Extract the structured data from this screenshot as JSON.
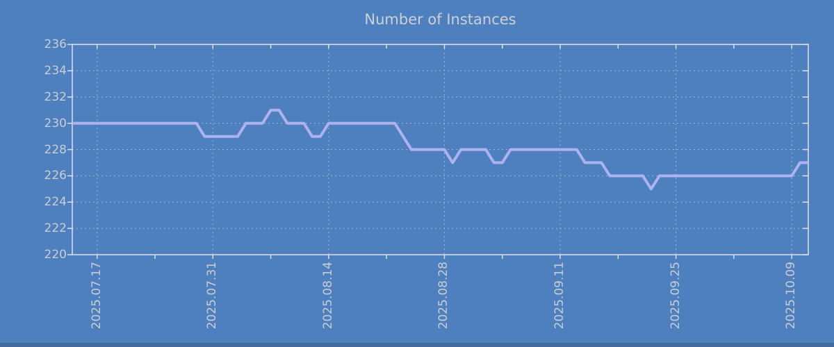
{
  "colors": {
    "background": "#4e80bf",
    "bottom_edge": "#456c9e",
    "line": "#aeb2ee",
    "axis": "#dfe3e7",
    "grid": "#b9c0c7",
    "text": "#c9ced4",
    "title_text": "#ccd1d7"
  },
  "chart_data": {
    "type": "line",
    "title": "Number of Instances",
    "xlabel": "",
    "ylabel": "",
    "ylim": [
      220,
      236
    ],
    "y_tick_step": 2,
    "y_tick_labels": [
      "220",
      "222",
      "224",
      "226",
      "228",
      "230",
      "232",
      "234",
      "236"
    ],
    "grid": true,
    "legend": "none",
    "x_start_date": "2025-07-14",
    "x_days_total": 89,
    "x_major_ticks": [
      {
        "day": 3,
        "label": "2025.07.17"
      },
      {
        "day": 17,
        "label": "2025.07.31"
      },
      {
        "day": 31,
        "label": "2025.08.14"
      },
      {
        "day": 45,
        "label": "2025.08.28"
      },
      {
        "day": 59,
        "label": "2025.09.11"
      },
      {
        "day": 73,
        "label": "2025.09.25"
      },
      {
        "day": 87,
        "label": "2025.10.09"
      }
    ],
    "x_minor_tick_days": [
      10,
      24,
      38,
      52,
      66,
      80
    ],
    "series": [
      {
        "name": "instances",
        "color": "#aeb2ee",
        "values": [
          230,
          230,
          230,
          230,
          230,
          230,
          230,
          230,
          230,
          230,
          230,
          230,
          230,
          230,
          230,
          230,
          229,
          229,
          229,
          229,
          229,
          230,
          230,
          230,
          231,
          231,
          230,
          230,
          230,
          229,
          229,
          230,
          230,
          230,
          230,
          230,
          230,
          230,
          230,
          230,
          229,
          228,
          228,
          228,
          228,
          228,
          227,
          228,
          228,
          228,
          228,
          227,
          227,
          228,
          228,
          228,
          228,
          228,
          228,
          228,
          228,
          228,
          227,
          227,
          227,
          226,
          226,
          226,
          226,
          226,
          225,
          226,
          226,
          226,
          226,
          226,
          226,
          226,
          226,
          226,
          226,
          226,
          226,
          226,
          226,
          226,
          226,
          226,
          227,
          227
        ]
      }
    ]
  }
}
